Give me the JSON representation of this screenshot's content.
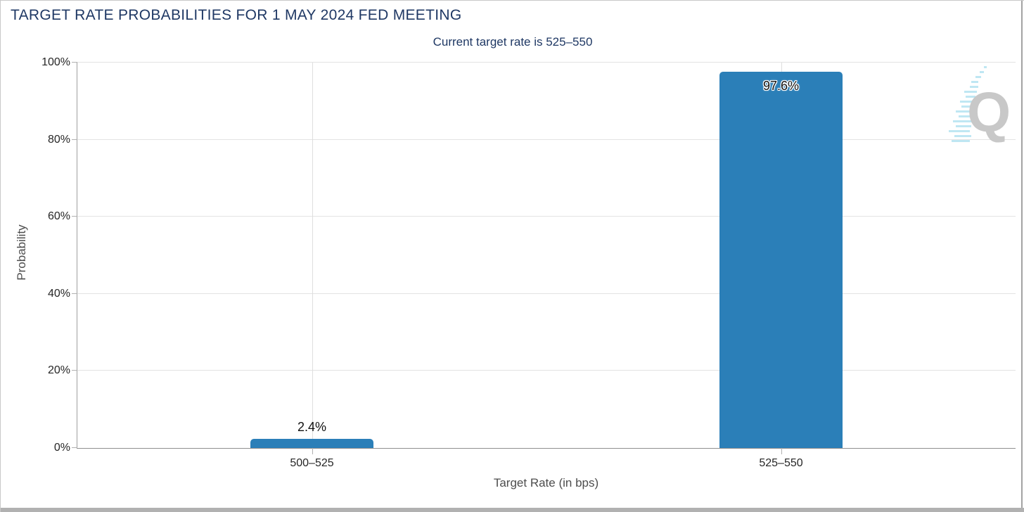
{
  "header": {
    "title": "TARGET RATE PROBABILITIES FOR 1 MAY 2024 FED MEETING",
    "subtitle": "Current target rate is 525–550"
  },
  "colors": {
    "bar": "#2b7fb8",
    "title_text": "#1f3864",
    "gridline": "#e3e3e3",
    "axis_line": "#9e9e9e",
    "tick_text": "#262626",
    "axis_title_text": "#4d4d4d",
    "watermark_q": "#c8c8c8",
    "watermark_dash": "#bfe7f3"
  },
  "watermark": {
    "letter": "Q"
  },
  "chart_data": {
    "type": "bar",
    "title": "TARGET RATE PROBABILITIES FOR 1 MAY 2024 FED MEETING",
    "subtitle": "Current target rate is 525–550",
    "categories": [
      "500–525",
      "525–550"
    ],
    "values": [
      2.4,
      97.6
    ],
    "value_labels": [
      "2.4%",
      "97.6%"
    ],
    "xlabel": "Target Rate (in bps)",
    "ylabel": "Probability",
    "ylim": [
      0,
      100
    ],
    "yticks": [
      0,
      20,
      40,
      60,
      80,
      100
    ],
    "ytick_labels": [
      "0%",
      "20%",
      "40%",
      "60%",
      "80%",
      "100%"
    ],
    "grid": true,
    "legend": false,
    "bar_color": "#2b7fb8"
  }
}
